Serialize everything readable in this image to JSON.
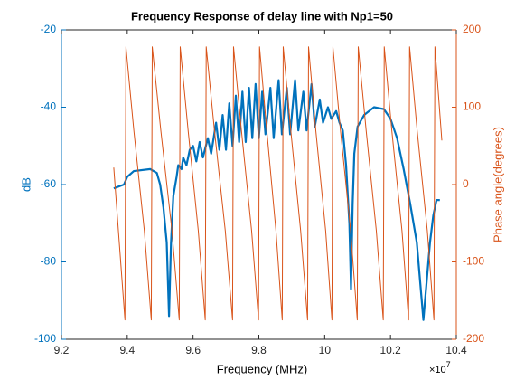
{
  "chart_data": {
    "type": "line",
    "title": "Frequency Response of delay line with  Np1=50",
    "xlabel": "Frequency (MHz)",
    "ylabel": "dB",
    "y2label": "Phase angle(degrees)",
    "x_multiplier": {
      "base": "×10",
      "exponent": "7"
    },
    "xlim": [
      9.2,
      10.4
    ],
    "xticks": [
      9.2,
      9.4,
      9.6,
      9.8,
      10,
      10.2,
      10.4
    ],
    "ylim": [
      -100,
      -20
    ],
    "yticks": [
      -100,
      -80,
      -60,
      -40,
      -20
    ],
    "y2lim": [
      -200,
      200
    ],
    "y2ticks": [
      -200,
      -100,
      0,
      100,
      200
    ],
    "left_axis_color": "#0072bd",
    "right_axis_color": "#d95319",
    "series": [
      {
        "color": "#0072bd",
        "axis": "y",
        "x": [
          9.359,
          9.39,
          9.4,
          9.42,
          9.47,
          9.49,
          9.5,
          9.51,
          9.52,
          9.527,
          9.533,
          9.54,
          9.55,
          9.555,
          9.565,
          9.57,
          9.58,
          9.59,
          9.6,
          9.61,
          9.62,
          9.63,
          9.645,
          9.655,
          9.67,
          9.68,
          9.69,
          9.7,
          9.71,
          9.72,
          9.73,
          9.74,
          9.75,
          9.76,
          9.77,
          9.78,
          9.79,
          9.8,
          9.81,
          9.82,
          9.835,
          9.845,
          9.86,
          9.87,
          9.885,
          9.895,
          9.91,
          9.92,
          9.935,
          9.945,
          9.96,
          9.97,
          9.985,
          9.995,
          10.01,
          10.02,
          10.035,
          10.045,
          10.055,
          10.065,
          10.075,
          10.08,
          10.085,
          10.09,
          10.1,
          10.12,
          10.15,
          10.18,
          10.2,
          10.22,
          10.24,
          10.26,
          10.28,
          10.29,
          10.3,
          10.31,
          10.32,
          10.33,
          10.34,
          10.35
        ],
        "values": [
          -61,
          -60,
          -58,
          -56.5,
          -56,
          -57,
          -60,
          -66,
          -75,
          -94,
          -75,
          -63,
          -58,
          -55,
          -56,
          -53,
          -55,
          -51,
          -50,
          -54,
          -49,
          -53,
          -48,
          -52,
          -44,
          -51,
          -42,
          -51,
          -39,
          -50,
          -37,
          -49,
          -36,
          -49,
          -35,
          -48,
          -34,
          -48,
          -36,
          -47,
          -35,
          -48,
          -33,
          -47,
          -35,
          -47,
          -33,
          -46,
          -36,
          -46,
          -34,
          -45,
          -38,
          -44,
          -40,
          -43,
          -41,
          -44,
          -46,
          -55,
          -70,
          -87,
          -65,
          -52,
          -45,
          -42,
          -40,
          -40.5,
          -43,
          -48,
          -56,
          -65,
          -75,
          -85,
          -95,
          -85,
          -75,
          -68,
          -64,
          -64
        ]
      },
      {
        "color": "#d95319",
        "axis": "y2",
        "x": [
          9.359,
          9.393,
          9.396,
          9.42,
          9.452,
          9.473,
          9.476,
          9.502,
          9.536,
          9.558,
          9.561,
          9.585,
          9.616,
          9.637,
          9.64,
          9.665,
          9.698,
          9.72,
          9.723,
          9.747,
          9.778,
          9.799,
          9.802,
          9.824,
          9.852,
          9.871,
          9.874,
          9.897,
          9.927,
          9.948,
          9.951,
          9.973,
          10.003,
          10.022,
          10.025,
          10.048,
          10.079,
          10.099,
          10.102,
          10.126,
          10.157,
          10.178,
          10.181,
          10.204,
          10.235,
          10.255,
          10.258,
          10.281,
          10.312,
          10.332,
          10.335,
          10.356
        ],
        "values": [
          22,
          -175,
          178,
          70,
          -60,
          -175,
          178,
          70,
          -60,
          -175,
          178,
          70,
          -60,
          -175,
          178,
          70,
          -60,
          -175,
          178,
          70,
          -60,
          -175,
          178,
          70,
          -60,
          -175,
          178,
          70,
          -60,
          -175,
          178,
          70,
          -60,
          -175,
          178,
          70,
          -60,
          -175,
          178,
          70,
          -60,
          -175,
          178,
          70,
          -60,
          -175,
          178,
          70,
          -60,
          -175,
          178,
          57
        ]
      }
    ]
  }
}
